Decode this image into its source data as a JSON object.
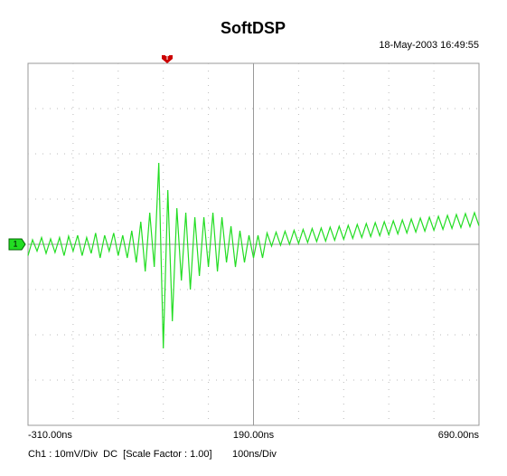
{
  "chart_data": {
    "type": "line",
    "title": "SoftDSP",
    "timestamp": "18-May-2003 16:49:55",
    "trigger_label": "T",
    "channel_info": "Ch1 : 10mV/Div  DC  [Scale Factor : 1.00]",
    "timebase": "100ns/Div",
    "x": [
      -310,
      -300,
      -290,
      -280,
      -270,
      -260,
      -250,
      -240,
      -230,
      -220,
      -210,
      -200,
      -190,
      -180,
      -170,
      -160,
      -150,
      -140,
      -130,
      -120,
      -110,
      -100,
      -90,
      -80,
      -70,
      -60,
      -50,
      -40,
      -30,
      -20,
      -10,
      0,
      10,
      20,
      30,
      40,
      50,
      60,
      70,
      80,
      90,
      100,
      110,
      120,
      130,
      140,
      150,
      160,
      170,
      180,
      190,
      200,
      210,
      220,
      230,
      240,
      250,
      260,
      270,
      280,
      290,
      300,
      310,
      320,
      330,
      340,
      350,
      360,
      370,
      380,
      390,
      400,
      410,
      420,
      430,
      440,
      450,
      460,
      470,
      480,
      490,
      500,
      510,
      520,
      530,
      540,
      550,
      560,
      570,
      580,
      590,
      600,
      610,
      620,
      630,
      640,
      650,
      660,
      670,
      680,
      690
    ],
    "series": [
      {
        "name": "1",
        "color": "#22dd22",
        "values": [
          -2.5,
          1,
          -1.5,
          1.5,
          -2,
          1.2,
          -1.8,
          1.5,
          -2.5,
          1.8,
          -1.5,
          2,
          -2.5,
          1.5,
          -2,
          2.5,
          -3,
          2,
          -1.5,
          2.5,
          -2.5,
          2,
          -3,
          3,
          -4,
          5,
          -6,
          7,
          -5,
          18,
          -23,
          12,
          -17,
          8,
          -8,
          7,
          -10,
          6,
          -7,
          6,
          -5,
          7,
          -6,
          6,
          -4,
          4,
          -5,
          3,
          -4,
          2,
          -3,
          2,
          -3,
          2.5,
          -0.4,
          2.7,
          -0.2,
          2.9,
          0,
          3.1,
          0.2,
          3.3,
          0.4,
          3.5,
          0.6,
          3.6,
          0.7,
          3.8,
          0.9,
          4.0,
          1.1,
          4.2,
          1.3,
          4.4,
          1.5,
          4.6,
          1.7,
          4.8,
          1.9,
          5.0,
          2.1,
          5.2,
          2.3,
          5.4,
          2.5,
          5.6,
          2.7,
          5.8,
          2.9,
          6.0,
          3.1,
          6.2,
          3.3,
          6.4,
          3.5,
          6.6,
          3.7,
          6.8,
          3.9,
          7.0,
          4.1
        ]
      }
    ],
    "xlim": [
      -310,
      690
    ],
    "ylim": [
      -40,
      40
    ],
    "xticks": [
      {
        "value": -310,
        "label": "-310.00ns"
      },
      {
        "value": 190,
        "label": "190.00ns"
      },
      {
        "value": 690,
        "label": "690.00ns"
      }
    ],
    "grid": true
  }
}
